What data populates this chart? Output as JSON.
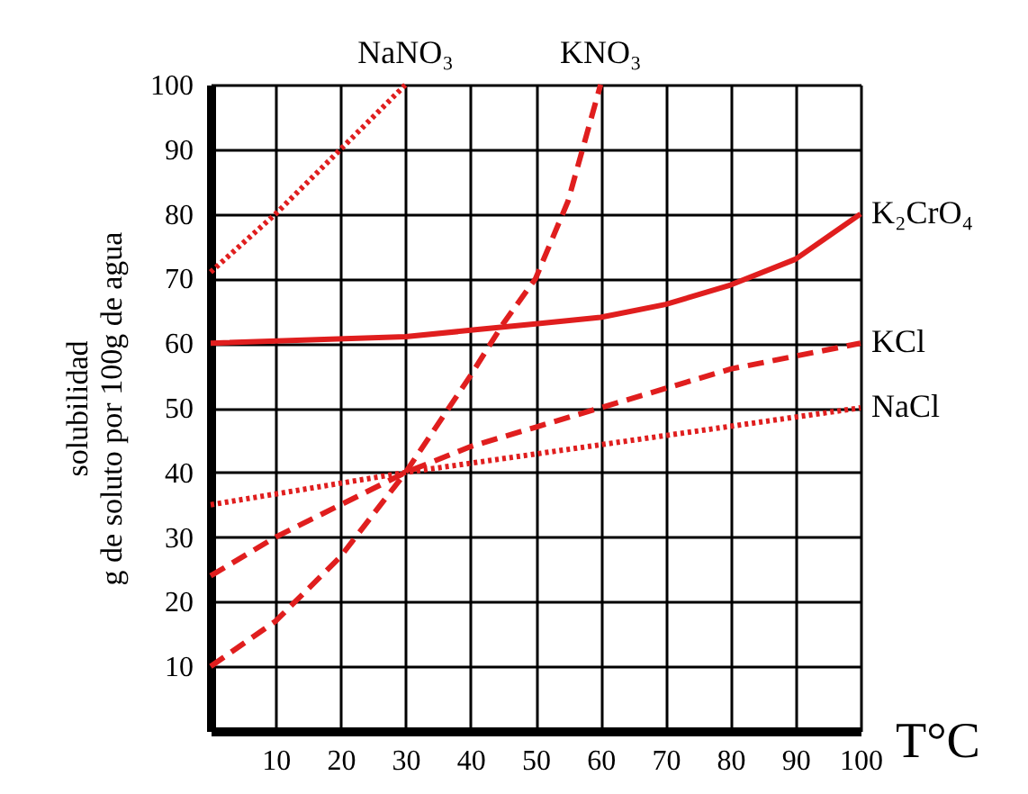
{
  "chart_data": {
    "type": "line",
    "xlabel": "T°C",
    "ylabel": "solubilidad\ng de soluto por 100g de agua",
    "xlim": [
      0,
      100
    ],
    "ylim": [
      0,
      100
    ],
    "xticks": [
      10,
      20,
      30,
      40,
      50,
      60,
      70,
      80,
      90,
      100
    ],
    "yticks": [
      10,
      20,
      30,
      40,
      50,
      60,
      70,
      80,
      90,
      100
    ],
    "grid": true,
    "marker": "none",
    "series": [
      {
        "name": "NaNO₃",
        "color": "#e01e1e",
        "line_style": "dotted",
        "x": [
          0,
          10,
          20,
          30
        ],
        "values": [
          71,
          80,
          90,
          100
        ]
      },
      {
        "name": "KNO₃",
        "color": "#e01e1e",
        "line_style": "dashed",
        "x": [
          0,
          10,
          20,
          30,
          40,
          45,
          50,
          55,
          60
        ],
        "values": [
          10,
          17,
          27,
          40,
          55,
          63,
          70,
          82,
          100
        ]
      },
      {
        "name": "K₂CrO₄",
        "color": "#e01e1e",
        "line_style": "solid",
        "x": [
          0,
          30,
          40,
          50,
          60,
          70,
          80,
          90,
          100
        ],
        "values": [
          60,
          61,
          62,
          63,
          64,
          66,
          69,
          73,
          80
        ]
      },
      {
        "name": "KCl",
        "color": "#e01e1e",
        "line_style": "dashed",
        "x": [
          0,
          10,
          20,
          30,
          40,
          50,
          60,
          70,
          80,
          90,
          100
        ],
        "values": [
          24,
          30,
          35,
          40,
          44,
          47,
          50,
          53,
          56,
          58,
          60
        ]
      },
      {
        "name": "NaCl",
        "color": "#e01e1e",
        "line_style": "dotted",
        "x": [
          0,
          30,
          100
        ],
        "values": [
          35,
          40,
          50
        ]
      }
    ]
  }
}
